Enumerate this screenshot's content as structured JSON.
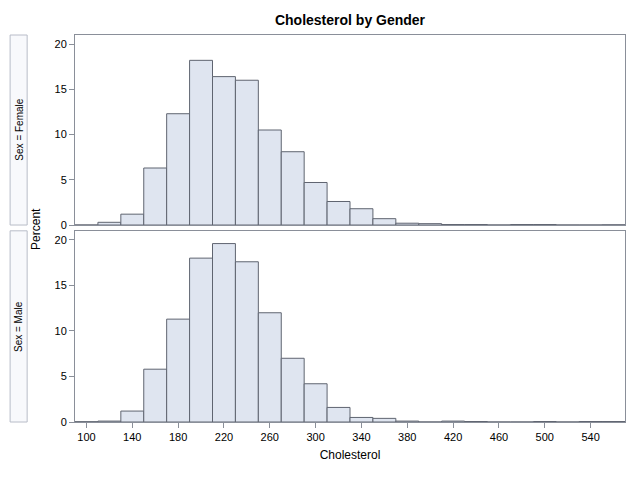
{
  "chart_data": {
    "type": "histogram",
    "title": "Cholesterol by Gender",
    "x_label": "Cholesterol",
    "y_label": "Percent",
    "bins": [
      90,
      110,
      130,
      150,
      170,
      190,
      210,
      230,
      250,
      270,
      290,
      310,
      330,
      350,
      370,
      390,
      410,
      430,
      450,
      470,
      490,
      510,
      530,
      550,
      570
    ],
    "series": [
      {
        "name": "Sex = Female",
        "values": [
          0,
          0.3,
          1.2,
          6.3,
          12.3,
          18.2,
          16.4,
          16.0,
          10.5,
          8.1,
          4.7,
          2.6,
          1.8,
          0.7,
          0.2,
          0.15,
          0.05,
          0.05,
          0,
          0.05,
          0.05,
          0,
          0,
          0.02
        ]
      },
      {
        "name": "Sex = Male",
        "values": [
          0.03,
          0.1,
          1.2,
          5.8,
          11.3,
          18.0,
          19.6,
          17.6,
          12.0,
          7.0,
          4.2,
          1.6,
          0.5,
          0.4,
          0.1,
          0,
          0.1,
          0.05,
          0,
          0,
          0.05,
          0,
          0.05,
          0.05
        ]
      }
    ],
    "color": "#dfe5f0",
    "xlim": [
      90,
      570
    ],
    "xticks": [
      100,
      140,
      180,
      220,
      260,
      300,
      340,
      380,
      420,
      460,
      500,
      540
    ],
    "ylim": [
      0,
      21
    ],
    "yticks": [
      0,
      5,
      10,
      15,
      20
    ],
    "grid": false
  }
}
